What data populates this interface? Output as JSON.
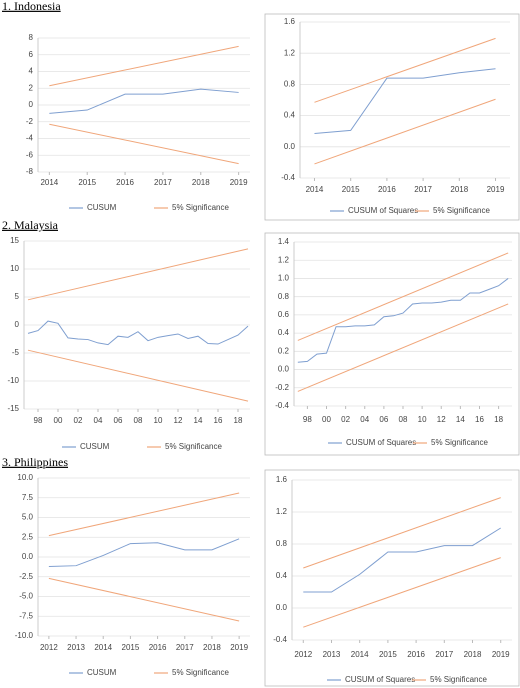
{
  "headings": [
    "1. Indonesia",
    "2. Malaysia",
    "3. Philippines"
  ],
  "chart_data": [
    {
      "type": "line",
      "x": [
        2014,
        2015,
        2016,
        2017,
        2018,
        2019
      ],
      "xlim": [
        2013.7,
        2019.3
      ],
      "xticks": [
        2014,
        2015,
        2016,
        2017,
        2018,
        2019
      ],
      "ylim": [
        -8,
        8
      ],
      "yticks": [
        -8,
        -6,
        -4,
        -2,
        0,
        2,
        4,
        6,
        8
      ],
      "grid": true,
      "series": [
        {
          "name": "CUSUM",
          "color": "#7f9fd0",
          "values": [
            -1,
            -0.6,
            1.3,
            1.3,
            1.9,
            1.5
          ]
        },
        {
          "name": "5% Significance",
          "color": "#f0a67a",
          "x": [
            2014,
            2019
          ],
          "values": [
            2.3,
            7
          ]
        },
        {
          "color": "#f0a67a",
          "x": [
            2014,
            2019
          ],
          "values": [
            -2.3,
            -7
          ]
        }
      ]
    },
    {
      "type": "line",
      "x": [
        2014,
        2015,
        2016,
        2017,
        2018,
        2019
      ],
      "xlim": [
        2013.6,
        2019.4
      ],
      "xticks": [
        2014,
        2015,
        2016,
        2017,
        2018,
        2019
      ],
      "ylim": [
        -0.4,
        1.6
      ],
      "yticks": [
        -0.4,
        {
          "value": 0,
          "label": "0.0"
        },
        0.4,
        0.8,
        1.2,
        1.6
      ],
      "grid": true,
      "frame": true,
      "series": [
        {
          "name": "CUSUM of Squares",
          "color": "#7f9fd0",
          "values": [
            0.17,
            0.21,
            0.88,
            0.88,
            0.95,
            1.0
          ]
        },
        {
          "name": "5% Significance",
          "color": "#f0a67a",
          "x": [
            2014,
            2019
          ],
          "values": [
            0.57,
            1.39
          ]
        },
        {
          "color": "#f0a67a",
          "x": [
            2014,
            2019
          ],
          "values": [
            -0.22,
            0.61
          ]
        }
      ]
    },
    {
      "type": "line",
      "x": [
        1997,
        1998,
        1999,
        2000,
        2001,
        2002,
        2003,
        2004,
        2005,
        2006,
        2007,
        2008,
        2009,
        2010,
        2011,
        2012,
        2013,
        2014,
        2015,
        2016,
        2017,
        2018,
        2019
      ],
      "xlim": [
        1996.6,
        2019.2
      ],
      "xticks": [
        {
          "value": 1998,
          "label": "98"
        },
        {
          "value": 2000,
          "label": "00"
        },
        {
          "value": 2002,
          "label": "02"
        },
        {
          "value": 2004,
          "label": "04"
        },
        {
          "value": 2006,
          "label": "06"
        },
        {
          "value": 2008,
          "label": "08"
        },
        {
          "value": 2010,
          "label": "10"
        },
        {
          "value": 2012,
          "label": "12"
        },
        {
          "value": 2014,
          "label": "14"
        },
        {
          "value": 2016,
          "label": "16"
        },
        {
          "value": 2018,
          "label": "18"
        }
      ],
      "ylim": [
        -15,
        15
      ],
      "yticks": [
        -15,
        -10,
        -5,
        0,
        5,
        10,
        15
      ],
      "grid": true,
      "series": [
        {
          "name": "CUSUM",
          "color": "#7f9fd0",
          "values": [
            -1.5,
            -1,
            0.7,
            0.3,
            -2.3,
            -2.5,
            -2.6,
            -3.2,
            -3.5,
            -2,
            -2.2,
            -1.2,
            -2.8,
            -2.2,
            -1.9,
            -1.6,
            -2.4,
            -2,
            -3.3,
            -3.4,
            -2.6,
            -1.8,
            -0.2
          ]
        },
        {
          "name": "5% Significance",
          "color": "#f0a67a",
          "x": [
            1997,
            2019
          ],
          "values": [
            4.5,
            13.6
          ]
        },
        {
          "color": "#f0a67a",
          "x": [
            1997,
            2019
          ],
          "values": [
            -4.5,
            -13.6
          ]
        }
      ]
    },
    {
      "type": "line",
      "x": [
        1997,
        1998,
        1999,
        2000,
        2001,
        2002,
        2003,
        2004,
        2005,
        2006,
        2007,
        2008,
        2009,
        2010,
        2011,
        2012,
        2013,
        2014,
        2015,
        2016,
        2017,
        2018,
        2019
      ],
      "xlim": [
        1996.6,
        2019.4
      ],
      "xticks": [
        {
          "value": 1998,
          "label": "98"
        },
        {
          "value": 2000,
          "label": "00"
        },
        {
          "value": 2002,
          "label": "02"
        },
        {
          "value": 2004,
          "label": "04"
        },
        {
          "value": 2006,
          "label": "06"
        },
        {
          "value": 2008,
          "label": "08"
        },
        {
          "value": 2010,
          "label": "10"
        },
        {
          "value": 2012,
          "label": "12"
        },
        {
          "value": 2014,
          "label": "14"
        },
        {
          "value": 2016,
          "label": "16"
        },
        {
          "value": 2018,
          "label": "18"
        }
      ],
      "ylim": [
        -0.4,
        1.4
      ],
      "yticks": [
        -0.4,
        -0.2,
        {
          "value": 0,
          "label": "0.0"
        },
        0.2,
        0.4,
        0.6,
        0.8,
        {
          "value": 1,
          "label": "1.0"
        },
        1.2,
        1.4
      ],
      "grid": true,
      "frame": true,
      "series": [
        {
          "name": "CUSUM of Squares",
          "color": "#7f9fd0",
          "values": [
            0.08,
            0.09,
            0.17,
            0.18,
            0.47,
            0.47,
            0.48,
            0.48,
            0.49,
            0.58,
            0.59,
            0.62,
            0.72,
            0.73,
            0.73,
            0.74,
            0.76,
            0.76,
            0.84,
            0.84,
            0.88,
            0.92,
            1.0
          ]
        },
        {
          "name": "5% Significance",
          "color": "#f0a67a",
          "x": [
            1997,
            2019
          ],
          "values": [
            0.32,
            1.28
          ]
        },
        {
          "color": "#f0a67a",
          "x": [
            1997,
            2019
          ],
          "values": [
            -0.24,
            0.72
          ]
        }
      ]
    },
    {
      "type": "line",
      "x": [
        2012,
        2013,
        2014,
        2015,
        2016,
        2017,
        2018,
        2019
      ],
      "xlim": [
        2011.6,
        2019.4
      ],
      "xticks": [
        2012,
        2013,
        2014,
        2015,
        2016,
        2017,
        2018,
        2019
      ],
      "ylim": [
        -10,
        10
      ],
      "yticks": [
        {
          "value": -10,
          "label": "-10.0"
        },
        {
          "value": -7.5,
          "label": "-7.5"
        },
        {
          "value": -5,
          "label": "-5.0"
        },
        {
          "value": -2.5,
          "label": "-2.5"
        },
        {
          "value": 0,
          "label": "0.0"
        },
        {
          "value": 2.5,
          "label": "2.5"
        },
        {
          "value": 5,
          "label": "5.0"
        },
        {
          "value": 7.5,
          "label": "7.5"
        },
        {
          "value": 10,
          "label": "10.0"
        }
      ],
      "grid": true,
      "series": [
        {
          "name": "CUSUM",
          "color": "#7f9fd0",
          "values": [
            -1.2,
            -1.1,
            0.2,
            1.7,
            1.8,
            0.9,
            0.9,
            2.3
          ]
        },
        {
          "name": "5% Significance",
          "color": "#f0a67a",
          "x": [
            2012,
            2019
          ],
          "values": [
            2.7,
            8.1
          ]
        },
        {
          "color": "#f0a67a",
          "x": [
            2012,
            2019
          ],
          "values": [
            -2.7,
            -8.1
          ]
        }
      ]
    },
    {
      "type": "line",
      "x": [
        2012,
        2013,
        2014,
        2015,
        2016,
        2017,
        2018,
        2019
      ],
      "xlim": [
        2011.6,
        2019.4
      ],
      "xticks": [
        2012,
        2013,
        2014,
        2015,
        2016,
        2017,
        2018,
        2019
      ],
      "ylim": [
        -0.4,
        1.6
      ],
      "yticks": [
        -0.4,
        {
          "value": 0,
          "label": "0.0"
        },
        0.4,
        0.8,
        1.2,
        1.6
      ],
      "grid": true,
      "frame": true,
      "series": [
        {
          "name": "CUSUM of Squares",
          "color": "#7f9fd0",
          "values": [
            0.2,
            0.2,
            0.42,
            0.7,
            0.7,
            0.78,
            0.78,
            1.0
          ]
        },
        {
          "name": "5% Significance",
          "color": "#f0a67a",
          "x": [
            2012,
            2019
          ],
          "values": [
            0.5,
            1.38
          ]
        },
        {
          "color": "#f0a67a",
          "x": [
            2012,
            2019
          ],
          "values": [
            -0.24,
            0.63
          ]
        }
      ]
    }
  ]
}
